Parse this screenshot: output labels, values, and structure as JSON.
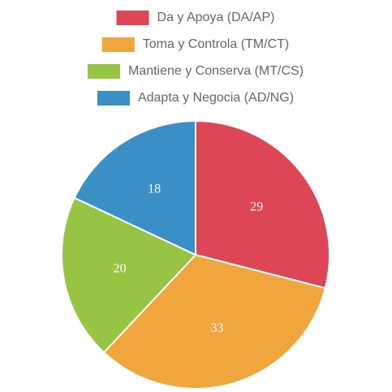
{
  "chart_data": {
    "type": "pie",
    "categories": [
      "Da y Apoya (DA/AP)",
      "Toma y Controla (TM/CT)",
      "Mantiene y Conserva (MT/CS)",
      "Adapta y Negocia (AD/NG)"
    ],
    "values": [
      29,
      33,
      20,
      18
    ],
    "colors": [
      "#dc4655",
      "#f0a63c",
      "#97c443",
      "#3a8fc7"
    ],
    "legend": "top"
  }
}
